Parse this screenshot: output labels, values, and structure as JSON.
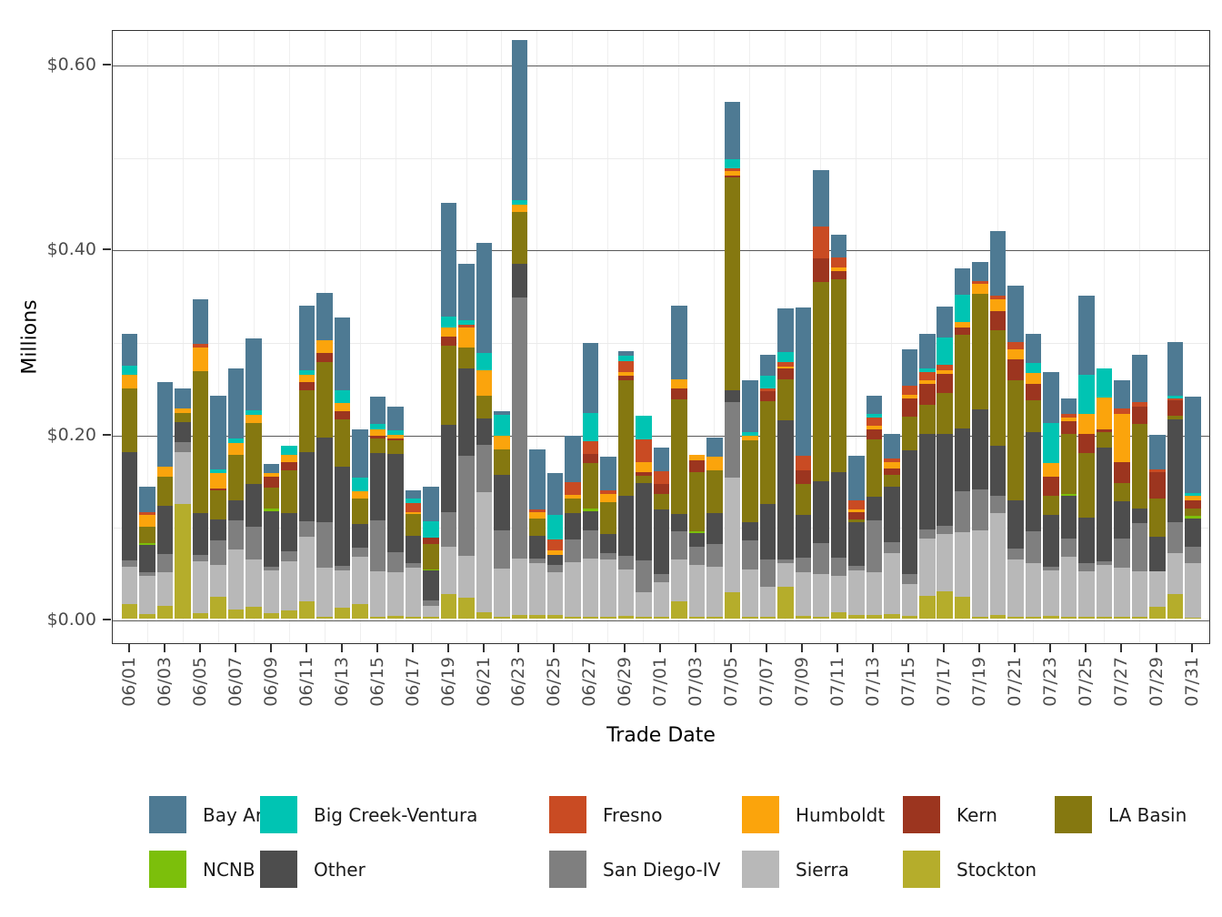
{
  "chart_data": {
    "type": "bar",
    "stacked": true,
    "title": "",
    "xlabel": "Trade Date",
    "ylabel": "Millions",
    "unit": "USD millions",
    "ylim": [
      0,
      0.655
    ],
    "grid": true,
    "legend_position": "bottom",
    "y_ticks": [
      {
        "label": "$0.00",
        "value": 0.0
      },
      {
        "label": "$0.20",
        "value": 0.2
      },
      {
        "label": "$0.40",
        "value": 0.4
      },
      {
        "label": "$0.60",
        "value": 0.6
      }
    ],
    "y_minor_ticks": [
      0.1,
      0.3,
      0.5
    ],
    "x": [
      "06/01",
      "06/02",
      "06/03",
      "06/04",
      "06/05",
      "06/06",
      "06/07",
      "06/08",
      "06/09",
      "06/10",
      "06/11",
      "06/12",
      "06/13",
      "06/14",
      "06/15",
      "06/16",
      "06/17",
      "06/18",
      "06/19",
      "06/20",
      "06/21",
      "06/22",
      "06/23",
      "06/24",
      "06/25",
      "06/26",
      "06/27",
      "06/28",
      "06/29",
      "06/30",
      "07/01",
      "07/02",
      "07/03",
      "07/04",
      "07/05",
      "07/06",
      "07/07",
      "07/08",
      "07/09",
      "07/10",
      "07/11",
      "07/12",
      "07/13",
      "07/14",
      "07/15",
      "07/16",
      "07/17",
      "07/18",
      "07/19",
      "07/20",
      "07/21",
      "07/22",
      "07/23",
      "07/24",
      "07/25",
      "07/26",
      "07/27",
      "07/28",
      "07/29",
      "07/30",
      "07/31"
    ],
    "x_labeled_every": 2,
    "stacking_note": "series listed alphabetically; stacked with first series on top (Stockton at bottom)",
    "series": [
      {
        "name": "Bay Area",
        "color": "#4e7a93",
        "values": [
          0.035,
          0.028,
          0.092,
          0.022,
          0.048,
          0.08,
          0.075,
          0.078,
          0.01,
          0,
          0.069,
          0.051,
          0.079,
          0.053,
          0.03,
          0.025,
          0.009,
          0.038,
          0.122,
          0.061,
          0.119,
          0.004,
          0.173,
          0.065,
          0.045,
          0.05,
          0.076,
          0.036,
          0.005,
          0,
          0.026,
          0.079,
          0,
          0.021,
          0.062,
          0.056,
          0.022,
          0.047,
          0.16,
          0.061,
          0.025,
          0.048,
          0.02,
          0.027,
          0.039,
          0.038,
          0.033,
          0.029,
          0.021,
          0.07,
          0.061,
          0.032,
          0.056,
          0.017,
          0.085,
          0,
          0.031,
          0.051,
          0.038,
          0.058,
          0.104
        ]
      },
      {
        "name": "Big Creek-Ventura",
        "color": "#00c4b3",
        "values": [
          0.009,
          0,
          0,
          0,
          0,
          0.004,
          0.005,
          0.005,
          0,
          0.01,
          0.005,
          0,
          0.014,
          0.014,
          0.005,
          0.005,
          0.005,
          0.017,
          0.012,
          0.005,
          0.019,
          0.022,
          0.005,
          0,
          0.026,
          0,
          0.03,
          0,
          0.006,
          0.025,
          0,
          0,
          0,
          0,
          0.01,
          0.004,
          0.014,
          0.011,
          0,
          0,
          0,
          0,
          0.004,
          0,
          0,
          0.003,
          0.03,
          0.029,
          0,
          0,
          0,
          0.01,
          0.043,
          0,
          0.043,
          0.031,
          0,
          0,
          0,
          0.003,
          0.003
        ]
      },
      {
        "name": "Fresno",
        "color": "#c94b23",
        "values": [
          0,
          0.003,
          0,
          0,
          0.004,
          0,
          0,
          0,
          0,
          0,
          0,
          0,
          0,
          0,
          0,
          0,
          0.01,
          0,
          0,
          0.003,
          0,
          0,
          0,
          0.003,
          0.012,
          0.014,
          0.014,
          0.004,
          0.011,
          0.025,
          0.013,
          0,
          0,
          0,
          0.003,
          0,
          0.003,
          0.005,
          0.016,
          0.035,
          0.01,
          0.01,
          0.008,
          0.004,
          0.01,
          0.009,
          0.005,
          0,
          0.003,
          0.004,
          0.008,
          0,
          0,
          0.004,
          0,
          0,
          0.006,
          0.005,
          0.003,
          0.002,
          0
        ]
      },
      {
        "name": "Humboldt",
        "color": "#fba40c",
        "values": [
          0.015,
          0.013,
          0.011,
          0.005,
          0.025,
          0.016,
          0.013,
          0.009,
          0.004,
          0.008,
          0.008,
          0.014,
          0.009,
          0.008,
          0.007,
          0.004,
          0.002,
          0,
          0.01,
          0.022,
          0.027,
          0.015,
          0.007,
          0.007,
          0.005,
          0.004,
          0,
          0.009,
          0.004,
          0.011,
          0,
          0.01,
          0.006,
          0.015,
          0.005,
          0.005,
          0,
          0.002,
          0,
          0,
          0.004,
          0.003,
          0.004,
          0.007,
          0.004,
          0.004,
          0.004,
          0.006,
          0.011,
          0.013,
          0.011,
          0.012,
          0.015,
          0.004,
          0.021,
          0.034,
          0.052,
          0,
          0,
          0,
          0.005
        ]
      },
      {
        "name": "Kern",
        "color": "#9c351f",
        "values": [
          0,
          0,
          0,
          0,
          0,
          0.002,
          0,
          0,
          0.011,
          0.009,
          0.009,
          0.01,
          0.009,
          0,
          0.003,
          0.002,
          0,
          0.007,
          0.01,
          0,
          0,
          0,
          0,
          0,
          0,
          0,
          0.01,
          0,
          0.005,
          0.004,
          0.011,
          0.012,
          0.013,
          0,
          0.002,
          0,
          0.011,
          0.011,
          0.014,
          0.025,
          0.009,
          0.008,
          0.011,
          0.007,
          0.02,
          0.023,
          0.021,
          0.008,
          0,
          0.02,
          0.022,
          0.018,
          0.02,
          0.013,
          0.021,
          0.003,
          0.022,
          0.019,
          0.028,
          0.017,
          0.009
        ]
      },
      {
        "name": "LA Basin",
        "color": "#857810",
        "values": [
          0.069,
          0.017,
          0.031,
          0.01,
          0.154,
          0.032,
          0.049,
          0.065,
          0.023,
          0.046,
          0.067,
          0.081,
          0.051,
          0.028,
          0.016,
          0.015,
          0.023,
          0.028,
          0.086,
          0.023,
          0.025,
          0.028,
          0.056,
          0.018,
          0,
          0.016,
          0.049,
          0.035,
          0.125,
          0.007,
          0.017,
          0.124,
          0.064,
          0.046,
          0.23,
          0.089,
          0.111,
          0.045,
          0.034,
          0.215,
          0.209,
          0.003,
          0.062,
          0.012,
          0.036,
          0.031,
          0.044,
          0.101,
          0.125,
          0.125,
          0.13,
          0.034,
          0.021,
          0.065,
          0.07,
          0.017,
          0.02,
          0.091,
          0.041,
          0.004,
          0.008
        ]
      },
      {
        "name": "NCNB",
        "color": "#7cbf0b",
        "values": [
          0,
          0.002,
          0,
          0,
          0,
          0,
          0,
          0,
          0.003,
          0,
          0,
          0,
          0,
          0,
          0,
          0,
          0,
          0.001,
          0,
          0,
          0,
          0,
          0,
          0,
          0,
          0,
          0.003,
          0,
          0,
          0,
          0,
          0,
          0.002,
          0,
          0,
          0,
          0,
          0,
          0,
          0,
          0,
          0,
          0,
          0,
          0,
          0,
          0,
          0,
          0,
          0,
          0,
          0,
          0,
          0.002,
          0,
          0,
          0,
          0,
          0,
          0,
          0.003
        ]
      },
      {
        "name": "Other",
        "color": "#4d4d4d",
        "values": [
          0.117,
          0.03,
          0.052,
          0.021,
          0.045,
          0.022,
          0.022,
          0.047,
          0.06,
          0.041,
          0.075,
          0.092,
          0.107,
          0.025,
          0.073,
          0.106,
          0.03,
          0.032,
          0.094,
          0.094,
          0.028,
          0.06,
          0.037,
          0.025,
          0.011,
          0.028,
          0.021,
          0.02,
          0.065,
          0.084,
          0.07,
          0.019,
          0.014,
          0.033,
          0.013,
          0.019,
          0.06,
          0.15,
          0.046,
          0.067,
          0.092,
          0.047,
          0.026,
          0.06,
          0.134,
          0.104,
          0.1,
          0.068,
          0.086,
          0.054,
          0.052,
          0.108,
          0.056,
          0.046,
          0.049,
          0.123,
          0.04,
          0.016,
          0.038,
          0.111,
          0.03
        ]
      },
      {
        "name": "San Diego-IV",
        "color": "#7f7f7f",
        "values": [
          0.007,
          0.004,
          0.02,
          0.011,
          0.007,
          0.027,
          0.031,
          0.035,
          0.004,
          0.011,
          0.016,
          0.049,
          0.005,
          0.01,
          0.055,
          0.022,
          0.005,
          0.006,
          0.037,
          0.108,
          0.051,
          0.041,
          0.282,
          0.005,
          0.008,
          0.025,
          0.03,
          0.007,
          0.015,
          0.034,
          0.009,
          0.03,
          0.02,
          0.025,
          0.082,
          0.032,
          0.03,
          0.004,
          0.016,
          0.034,
          0.02,
          0.005,
          0.056,
          0.012,
          0.011,
          0.009,
          0.009,
          0.045,
          0.045,
          0.019,
          0.012,
          0.034,
          0.004,
          0.02,
          0.009,
          0.004,
          0.032,
          0.052,
          0,
          0.033,
          0.018
        ]
      },
      {
        "name": "Sierra",
        "color": "#b8b8b8",
        "values": [
          0.04,
          0.041,
          0.036,
          0.056,
          0.056,
          0.034,
          0.065,
          0.051,
          0.046,
          0.053,
          0.07,
          0.053,
          0.04,
          0.051,
          0.049,
          0.047,
          0.053,
          0.012,
          0.051,
          0.045,
          0.13,
          0.052,
          0.061,
          0.056,
          0.046,
          0.059,
          0.063,
          0.062,
          0.05,
          0.027,
          0.037,
          0.045,
          0.056,
          0.054,
          0.123,
          0.051,
          0.032,
          0.026,
          0.047,
          0.046,
          0.039,
          0.048,
          0.046,
          0.066,
          0.034,
          0.062,
          0.061,
          0.069,
          0.093,
          0.11,
          0.062,
          0.058,
          0.049,
          0.065,
          0.049,
          0.056,
          0.053,
          0.049,
          0.038,
          0.044,
          0.059
        ]
      },
      {
        "name": "Stockton",
        "color": "#b5ad2b",
        "values": [
          0.016,
          0.005,
          0.014,
          0.124,
          0.006,
          0.024,
          0.01,
          0.013,
          0.006,
          0.009,
          0.019,
          0.002,
          0.012,
          0.016,
          0.002,
          0.003,
          0.002,
          0.002,
          0.027,
          0.023,
          0.007,
          0.002,
          0.004,
          0.004,
          0.004,
          0.002,
          0.002,
          0.002,
          0.003,
          0.002,
          0.002,
          0.019,
          0.002,
          0.002,
          0.029,
          0.002,
          0.002,
          0.034,
          0.003,
          0.002,
          0.007,
          0.004,
          0.004,
          0.005,
          0.003,
          0.025,
          0.03,
          0.024,
          0.002,
          0.004,
          0.002,
          0.002,
          0.003,
          0.002,
          0.002,
          0.002,
          0.002,
          0.002,
          0.013,
          0.027,
          0.001
        ]
      }
    ],
    "legend_rows": [
      6,
      5
    ]
  },
  "axes": {
    "x_title": "Trade Date",
    "y_title": "Millions"
  }
}
